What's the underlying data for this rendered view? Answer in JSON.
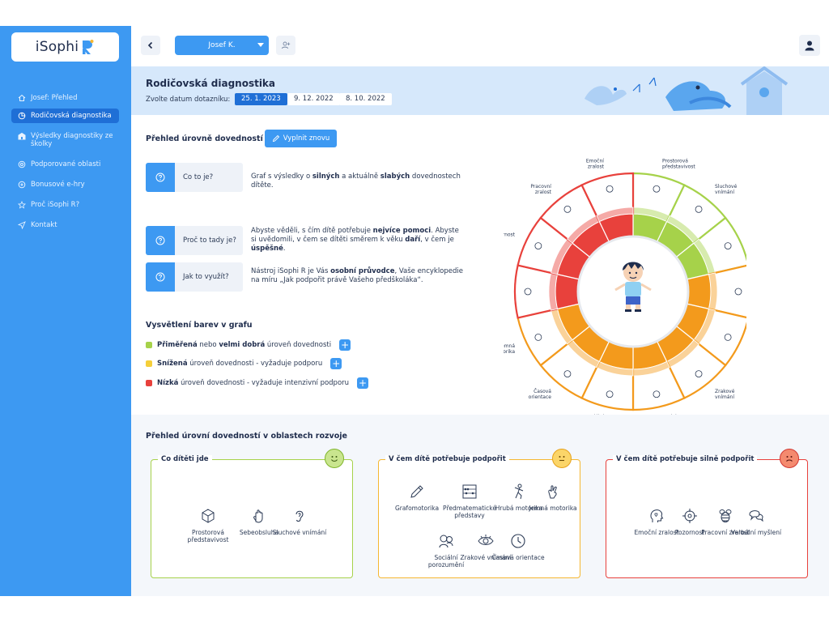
{
  "app": {
    "brand": "iSophi",
    "brand_mark": "R"
  },
  "sidebar": {
    "items": [
      {
        "label": "Josef: Přehled",
        "icon": "home-icon"
      },
      {
        "label": "Rodičovská diagnostika",
        "icon": "pie-chart-icon",
        "active": true
      },
      {
        "label": "Výsledky diagnostiky ze školky",
        "icon": "school-icon"
      },
      {
        "label": "Podporované oblasti",
        "icon": "target-icon"
      },
      {
        "label": "Bonusové e-hry",
        "icon": "gamepad-icon"
      },
      {
        "label": "Proč iSophi R?",
        "icon": "star-icon"
      },
      {
        "label": "Kontakt",
        "icon": "send-icon"
      }
    ]
  },
  "topbar": {
    "child_name": "Josef K."
  },
  "banner": {
    "title": "Rodičovská diagnostika",
    "date_label": "Zvolte datum dotazníku:",
    "dates": [
      "25. 1. 2023",
      "9. 12. 2022",
      "8. 10. 2022"
    ],
    "selected_date": "25. 1. 2023"
  },
  "overview": {
    "title": "Přehled úrovně dovedností",
    "refill_label": "Vyplnit znovu",
    "faq": [
      {
        "q": "Co to je?",
        "a_pre": "Graf s výsledky o ",
        "a_b1": "silných",
        "a_mid": " a aktuálně ",
        "a_b2": "slabých",
        "a_post": " dovednostech dítěte."
      },
      {
        "q": "Proč to tady je?",
        "a1": "Abyste věděli, s čím dítě potřebuje ",
        "a1b": "nejvíce pomoci",
        "a2": ". Abyste si uvědomili, v čem se dítěti směrem k věku ",
        "a2b": "daří",
        "a3": ", v čem je ",
        "a3b": "úspěšné",
        "a4": "."
      },
      {
        "q": "Jak to využít?",
        "a1": "Nástroj iSophi R je Vás ",
        "a1b": "osobní průvodce",
        "a2": ", Vaše encyklopedie na míru „Jak podpořit právě Vašeho předškoláka“."
      }
    ]
  },
  "legend": {
    "title": "Vysvětlení barev v grafu",
    "items": [
      {
        "b1": "Přiměřená",
        "t1": " nebo ",
        "b2": "velmi dobrá",
        "t2": " úroveň dovednosti",
        "color": "#a6d24a"
      },
      {
        "b1": "Snížená",
        "t1": " úroveň dovednosti - vyžaduje podporu",
        "b2": "",
        "t2": "",
        "color": "#f5cf3a"
      },
      {
        "b1": "Nízká",
        "t1": " úroveň dovednosti - vyžaduje intenzivní podporu",
        "b2": "",
        "t2": "",
        "color": "#e8413c"
      }
    ]
  },
  "wheel": {
    "segments": [
      {
        "label": "Prostorová představivost",
        "level": "good",
        "icon": "cube-icon"
      },
      {
        "label": "Sluchové vnímání",
        "level": "good",
        "icon": "ear-icon"
      },
      {
        "label": "Sebeobsluha",
        "level": "good",
        "icon": "hand-icon"
      },
      {
        "label": "Předmatematické představy",
        "level": "reduced",
        "icon": "abacus-icon"
      },
      {
        "label": "Grafomotorika",
        "level": "reduced",
        "icon": "pencil-icon"
      },
      {
        "label": "Zrakové vnímání",
        "level": "reduced",
        "icon": "eye-icon"
      },
      {
        "label": "Hrubá motorika",
        "level": "reduced",
        "icon": "figure-icon"
      },
      {
        "label": "Sociální porozumění",
        "level": "reduced",
        "icon": "people-icon"
      },
      {
        "label": "Časová orientace",
        "level": "reduced",
        "icon": "clock-icon"
      },
      {
        "label": "Jemná motorika",
        "level": "reduced",
        "icon": "fine-hand-icon"
      },
      {
        "label": "Verbální myšlení",
        "level": "low",
        "icon": "speech-icon"
      },
      {
        "label": "Pozornost",
        "level": "low",
        "icon": "crosshair-icon"
      },
      {
        "label": "Pracovní zralost",
        "level": "low",
        "icon": "bee-icon"
      },
      {
        "label": "Emoční zralost",
        "level": "low",
        "icon": "head-heart-icon"
      }
    ],
    "colors": {
      "good": "#a6d24a",
      "reduced": "#f39a1c",
      "low": "#e8413c"
    }
  },
  "areas": {
    "title": "Přehled úrovní dovedností v oblastech rozvoje",
    "boxes": [
      {
        "title": "Co dítěti jde",
        "color": "#a6d24a",
        "skills": [
          "Prostorová představivost",
          "Sebeobsluha",
          "Sluchové vnímání"
        ]
      },
      {
        "title": "V čem dítě potřebuje podpořit",
        "color": "#f5b731",
        "skills": [
          "Grafomotorika",
          "Předmatematické představy",
          "Hrubá motorika",
          "Jemná motorika",
          "Sociální porozumění",
          "Zrakové vnímání",
          "Časová orientace"
        ]
      },
      {
        "title": "V čem dítě potřebuje silně podpořit",
        "color": "#e8413c",
        "skills": [
          "Emoční zralost",
          "Pozornost",
          "Pracovní zralost",
          "Verbální myšlení"
        ]
      }
    ]
  }
}
